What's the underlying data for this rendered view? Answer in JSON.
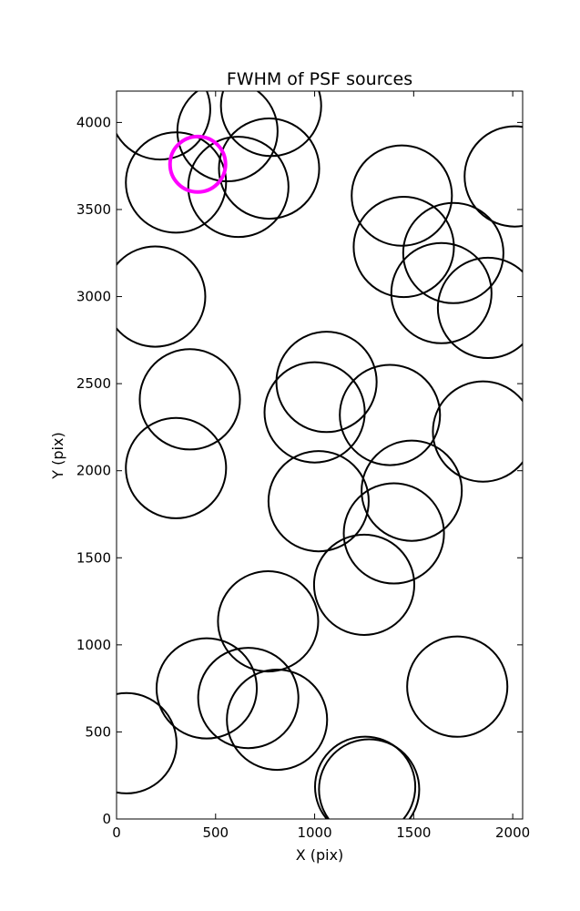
{
  "chart_data": {
    "type": "scatter",
    "title": "FWHM of PSF sources",
    "xlabel": "X (pix)",
    "ylabel": "Y (pix)",
    "xlim": [
      0,
      2050
    ],
    "ylim": [
      0,
      4180
    ],
    "x_ticks": [
      0,
      500,
      1000,
      1500,
      2000
    ],
    "y_ticks": [
      0,
      500,
      1000,
      1500,
      2000,
      2500,
      3000,
      3500,
      4000
    ],
    "grid": false,
    "legend": "none",
    "marker": "open circle, diameter = FWHM",
    "colors": {
      "default": "#000000",
      "highlight": "#ff00ff"
    },
    "sources": [
      {
        "x": 220,
        "y": 4075,
        "r": 253
      },
      {
        "x": 560,
        "y": 3950,
        "r": 253
      },
      {
        "x": 780,
        "y": 4095,
        "r": 253
      },
      {
        "x": 770,
        "y": 3735,
        "r": 253
      },
      {
        "x": 300,
        "y": 3655,
        "r": 253
      },
      {
        "x": 615,
        "y": 3630,
        "r": 253
      },
      {
        "x": 410,
        "y": 3760,
        "r": 140,
        "highlight": true
      },
      {
        "x": 1440,
        "y": 3580,
        "r": 253
      },
      {
        "x": 2010,
        "y": 3690,
        "r": 253
      },
      {
        "x": 1450,
        "y": 3285,
        "r": 253
      },
      {
        "x": 1700,
        "y": 3250,
        "r": 253
      },
      {
        "x": 1640,
        "y": 3020,
        "r": 253
      },
      {
        "x": 1875,
        "y": 2935,
        "r": 253
      },
      {
        "x": 195,
        "y": 3000,
        "r": 253
      },
      {
        "x": 1060,
        "y": 2510,
        "r": 253
      },
      {
        "x": 370,
        "y": 2410,
        "r": 253
      },
      {
        "x": 1000,
        "y": 2335,
        "r": 253
      },
      {
        "x": 1380,
        "y": 2320,
        "r": 253
      },
      {
        "x": 1850,
        "y": 2225,
        "r": 253
      },
      {
        "x": 300,
        "y": 2015,
        "r": 253
      },
      {
        "x": 1490,
        "y": 1885,
        "r": 253
      },
      {
        "x": 1020,
        "y": 1825,
        "r": 253
      },
      {
        "x": 1400,
        "y": 1640,
        "r": 253
      },
      {
        "x": 1250,
        "y": 1345,
        "r": 253
      },
      {
        "x": 765,
        "y": 1135,
        "r": 253
      },
      {
        "x": 1720,
        "y": 760,
        "r": 253
      },
      {
        "x": 455,
        "y": 750,
        "r": 253
      },
      {
        "x": 665,
        "y": 695,
        "r": 253
      },
      {
        "x": 810,
        "y": 570,
        "r": 253
      },
      {
        "x": 50,
        "y": 435,
        "r": 253
      },
      {
        "x": 1255,
        "y": 185,
        "r": 253
      },
      {
        "x": 1275,
        "y": 170,
        "r": 253
      }
    ]
  }
}
